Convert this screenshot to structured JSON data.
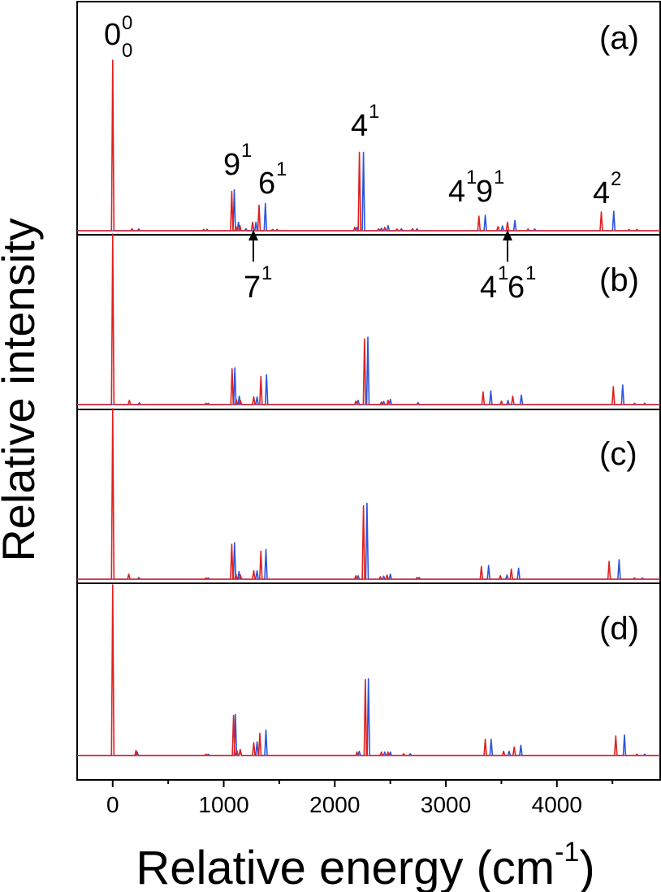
{
  "chart_data": {
    "type": "line",
    "xlabel": "Relative energy (cm",
    "xlabel_sup": "-1",
    "xlabel_close": ")",
    "ylabel": "Relative intensity",
    "xlim": [
      -320,
      4930
    ],
    "xticks": [
      0,
      1000,
      2000,
      3000,
      4000
    ],
    "tick_labels": [
      "0",
      "1000",
      "2000",
      "3000",
      "4000"
    ],
    "series_colors": {
      "red": "#e02020",
      "blue": "#2a55e0"
    },
    "panels": [
      {
        "label": "(a)",
        "red": [
          [
            0,
            1.0
          ],
          [
            175,
            0.012
          ],
          [
            820,
            0.008
          ],
          [
            1072,
            0.23
          ],
          [
            1110,
            0.025
          ],
          [
            1145,
            0.03
          ],
          [
            1260,
            0.05
          ],
          [
            1318,
            0.15
          ],
          [
            1440,
            0.008
          ],
          [
            2180,
            0.02
          ],
          [
            2222,
            0.46
          ],
          [
            2395,
            0.012
          ],
          [
            2450,
            0.02
          ],
          [
            2560,
            0.01
          ],
          [
            2700,
            0.012
          ],
          [
            3298,
            0.085
          ],
          [
            3470,
            0.025
          ],
          [
            3555,
            0.05
          ],
          [
            3740,
            0.01
          ],
          [
            4400,
            0.11
          ],
          [
            4650,
            0.008
          ]
        ],
        "blue": [
          [
            235,
            0.01
          ],
          [
            850,
            0.008
          ],
          [
            1095,
            0.24
          ],
          [
            1133,
            0.05
          ],
          [
            1200,
            0.012
          ],
          [
            1290,
            0.05
          ],
          [
            1375,
            0.16
          ],
          [
            1480,
            0.008
          ],
          [
            2200,
            0.02
          ],
          [
            2258,
            0.46
          ],
          [
            2420,
            0.015
          ],
          [
            2480,
            0.03
          ],
          [
            2600,
            0.012
          ],
          [
            2740,
            0.012
          ],
          [
            3355,
            0.09
          ],
          [
            3510,
            0.028
          ],
          [
            3622,
            0.06
          ],
          [
            3800,
            0.01
          ],
          [
            4512,
            0.115
          ],
          [
            4720,
            0.008
          ]
        ]
      },
      {
        "label": "(b)",
        "red": [
          [
            0,
            1.0
          ],
          [
            150,
            0.025
          ],
          [
            840,
            0.008
          ],
          [
            1075,
            0.21
          ],
          [
            1113,
            0.03
          ],
          [
            1150,
            0.025
          ],
          [
            1270,
            0.045
          ],
          [
            1335,
            0.165
          ],
          [
            2190,
            0.02
          ],
          [
            2268,
            0.385
          ],
          [
            2420,
            0.015
          ],
          [
            2480,
            0.025
          ],
          [
            3335,
            0.075
          ],
          [
            3500,
            0.02
          ],
          [
            3602,
            0.05
          ],
          [
            4508,
            0.105
          ],
          [
            4700,
            0.008
          ]
        ],
        "blue": [
          [
            240,
            0.01
          ],
          [
            860,
            0.008
          ],
          [
            1100,
            0.215
          ],
          [
            1140,
            0.05
          ],
          [
            1300,
            0.045
          ],
          [
            1385,
            0.175
          ],
          [
            2210,
            0.025
          ],
          [
            2298,
            0.395
          ],
          [
            2440,
            0.018
          ],
          [
            2500,
            0.03
          ],
          [
            2750,
            0.012
          ],
          [
            3405,
            0.08
          ],
          [
            3560,
            0.025
          ],
          [
            3680,
            0.055
          ],
          [
            4592,
            0.115
          ],
          [
            4790,
            0.008
          ]
        ]
      },
      {
        "label": "(c)",
        "red": [
          [
            0,
            1.0
          ],
          [
            145,
            0.03
          ],
          [
            840,
            0.008
          ],
          [
            1072,
            0.205
          ],
          [
            1110,
            0.03
          ],
          [
            1150,
            0.025
          ],
          [
            1270,
            0.05
          ],
          [
            1335,
            0.165
          ],
          [
            2190,
            0.02
          ],
          [
            2258,
            0.43
          ],
          [
            2410,
            0.015
          ],
          [
            2470,
            0.025
          ],
          [
            2740,
            0.01
          ],
          [
            3320,
            0.075
          ],
          [
            3490,
            0.02
          ],
          [
            3590,
            0.06
          ],
          [
            4470,
            0.105
          ],
          [
            4700,
            0.008
          ]
        ],
        "blue": [
          [
            235,
            0.01
          ],
          [
            860,
            0.008
          ],
          [
            1097,
            0.215
          ],
          [
            1138,
            0.045
          ],
          [
            1300,
            0.05
          ],
          [
            1380,
            0.175
          ],
          [
            2210,
            0.02
          ],
          [
            2290,
            0.445
          ],
          [
            2440,
            0.018
          ],
          [
            2500,
            0.03
          ],
          [
            2760,
            0.01
          ],
          [
            3385,
            0.08
          ],
          [
            3550,
            0.025
          ],
          [
            3655,
            0.065
          ],
          [
            4560,
            0.115
          ],
          [
            4770,
            0.008
          ]
        ]
      },
      {
        "label": "(d)",
        "red": [
          [
            0,
            1.0
          ],
          [
            210,
            0.03
          ],
          [
            840,
            0.008
          ],
          [
            1088,
            0.235
          ],
          [
            1118,
            0.03
          ],
          [
            1150,
            0.03
          ],
          [
            1270,
            0.075
          ],
          [
            1325,
            0.13
          ],
          [
            2200,
            0.02
          ],
          [
            2275,
            0.445
          ],
          [
            2420,
            0.02
          ],
          [
            2480,
            0.02
          ],
          [
            2620,
            0.01
          ],
          [
            3355,
            0.095
          ],
          [
            3520,
            0.025
          ],
          [
            3615,
            0.05
          ],
          [
            4530,
            0.115
          ],
          [
            4720,
            0.008
          ]
        ],
        "blue": [
          [
            220,
            0.02
          ],
          [
            860,
            0.008
          ],
          [
            1105,
            0.24
          ],
          [
            1148,
            0.035
          ],
          [
            1300,
            0.08
          ],
          [
            1380,
            0.15
          ],
          [
            2220,
            0.025
          ],
          [
            2303,
            0.45
          ],
          [
            2450,
            0.02
          ],
          [
            2500,
            0.02
          ],
          [
            2680,
            0.01
          ],
          [
            3408,
            0.095
          ],
          [
            3570,
            0.025
          ],
          [
            3675,
            0.06
          ],
          [
            4608,
            0.12
          ],
          [
            4790,
            0.008
          ]
        ]
      }
    ],
    "annotations": [
      {
        "base": "0",
        "sup": "0",
        "sub": "0"
      },
      {
        "base": "9",
        "sup": "1"
      },
      {
        "base": "6",
        "sup": "1"
      },
      {
        "base": "4",
        "sup": "1"
      },
      {
        "base": "4",
        "sup": "1",
        "base2": "9",
        "sup2": "1"
      },
      {
        "base": "4",
        "sup": "2"
      },
      {
        "base": "7",
        "sup": "1"
      },
      {
        "base": "4",
        "sup": "1",
        "base2": "6",
        "sup2": "1"
      }
    ]
  }
}
